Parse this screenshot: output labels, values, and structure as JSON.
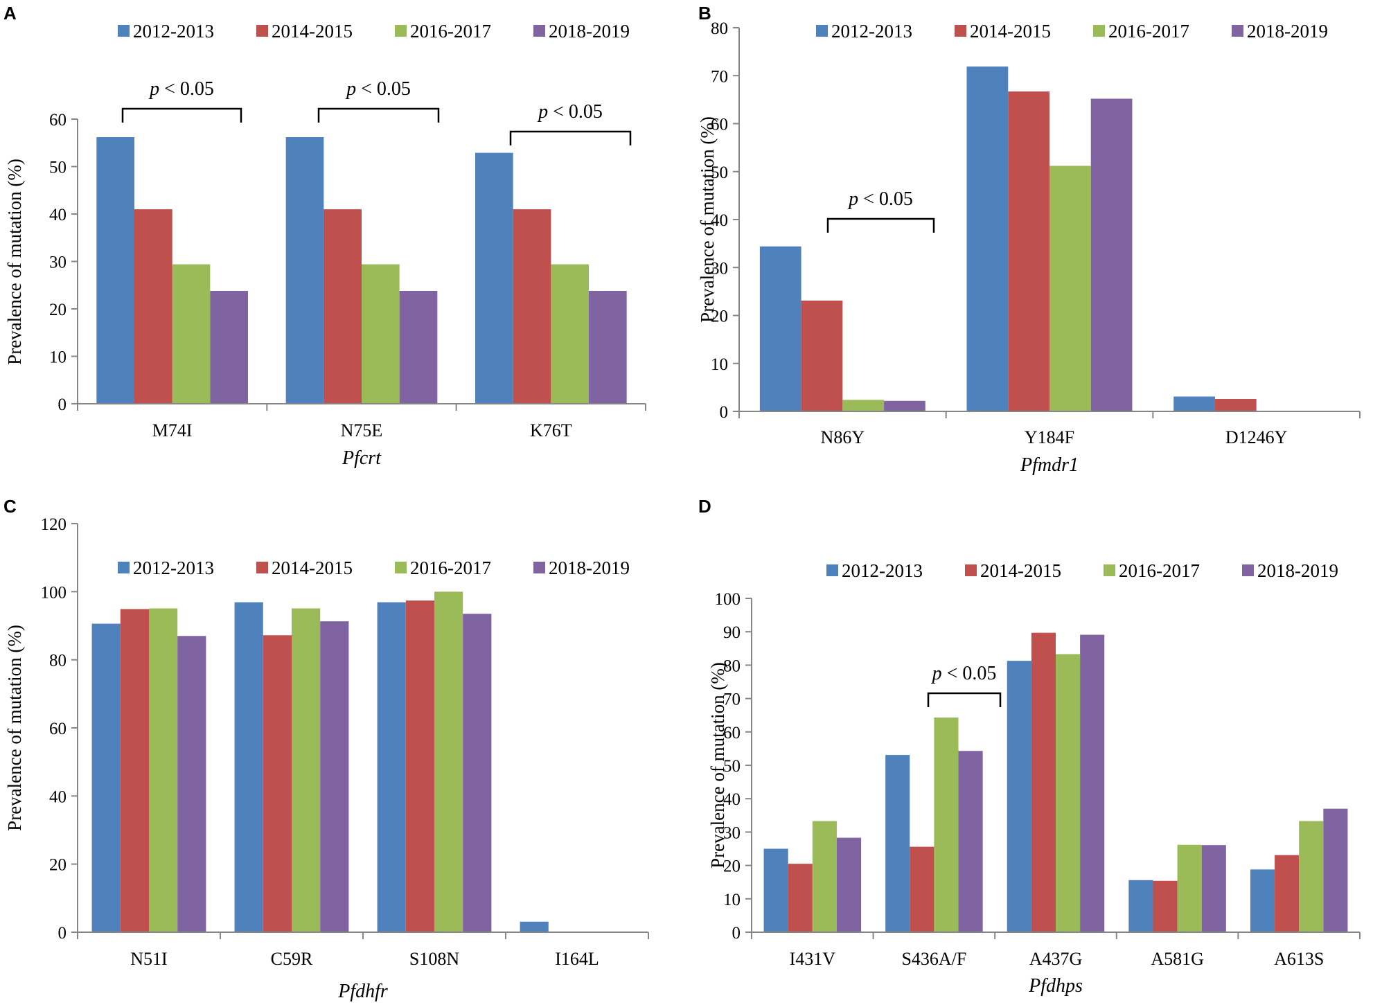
{
  "legend_series": [
    "2012-2013",
    "2014-2015",
    "2016-2017",
    "2018-2019"
  ],
  "colors": [
    "#4F81BD",
    "#C0504D",
    "#9BBB59",
    "#8064A2"
  ],
  "chart_data": [
    {
      "panel": "A",
      "type": "bar",
      "categories": [
        "M74I",
        "N75E",
        "K76T"
      ],
      "series": [
        {
          "name": "2012-2013",
          "values": [
            56.2,
            56.2,
            52.9
          ]
        },
        {
          "name": "2014-2015",
          "values": [
            41.0,
            41.0,
            41.0
          ]
        },
        {
          "name": "2016-2017",
          "values": [
            29.4,
            29.4,
            29.4
          ]
        },
        {
          "name": "2018-2019",
          "values": [
            23.8,
            23.8,
            23.8
          ]
        }
      ],
      "xlabel": "Pfcrt",
      "ylabel": "Prevalence of mutation (%)",
      "ylim": [
        0,
        60
      ],
      "yticks": [
        0,
        10,
        20,
        30,
        40,
        50,
        60
      ],
      "annotations": [
        {
          "text_p": "p",
          "text_rest": " < 0.05",
          "category": 0
        },
        {
          "text_p": "p",
          "text_rest": " < 0.05",
          "category": 1
        },
        {
          "text_p": "p",
          "text_rest": " < 0.05",
          "category": 2
        }
      ]
    },
    {
      "panel": "B",
      "type": "bar",
      "categories": [
        "N86Y",
        "Y184F",
        "D1246Y"
      ],
      "series": [
        {
          "name": "2012-2013",
          "values": [
            34.4,
            71.9,
            3.1
          ]
        },
        {
          "name": "2014-2015",
          "values": [
            23.1,
            66.7,
            2.6
          ]
        },
        {
          "name": "2016-2017",
          "values": [
            2.4,
            51.2,
            0
          ]
        },
        {
          "name": "2018-2019",
          "values": [
            2.2,
            65.2,
            0
          ]
        }
      ],
      "xlabel": "Pfmdr1",
      "ylabel": "Prevalence of mutation (%)",
      "ylim": [
        0,
        80
      ],
      "yticks": [
        0,
        10,
        20,
        30,
        40,
        50,
        60,
        70,
        80
      ],
      "annotations": [
        {
          "text_p": "p",
          "text_rest": " < 0.05",
          "category": 0
        }
      ]
    },
    {
      "panel": "C",
      "type": "bar",
      "categories": [
        "N51I",
        "C59R",
        "S108N",
        "I164L"
      ],
      "series": [
        {
          "name": "2012-2013",
          "values": [
            90.6,
            96.9,
            96.9,
            3.1
          ]
        },
        {
          "name": "2014-2015",
          "values": [
            94.9,
            87.2,
            97.4,
            0
          ]
        },
        {
          "name": "2016-2017",
          "values": [
            95.1,
            95.1,
            100,
            0
          ]
        },
        {
          "name": "2018-2019",
          "values": [
            87.0,
            91.3,
            93.5,
            0
          ]
        }
      ],
      "xlabel": "Pfdhfr",
      "ylabel": "Prevalence of mutation (%)",
      "ylim": [
        0,
        120
      ],
      "yticks": [
        0,
        20,
        40,
        60,
        80,
        100,
        120
      ],
      "annotations": []
    },
    {
      "panel": "D",
      "type": "bar",
      "categories": [
        "I431V",
        "S436A/F",
        "A437G",
        "A581G",
        "A613S"
      ],
      "series": [
        {
          "name": "2012-2013",
          "values": [
            25.0,
            53.1,
            81.3,
            15.6,
            18.8
          ]
        },
        {
          "name": "2014-2015",
          "values": [
            20.5,
            25.6,
            89.7,
            15.4,
            23.1
          ]
        },
        {
          "name": "2016-2017",
          "values": [
            33.3,
            64.3,
            83.3,
            26.2,
            33.3
          ]
        },
        {
          "name": "2018-2019",
          "values": [
            28.3,
            54.3,
            89.1,
            26.1,
            37.0
          ]
        }
      ],
      "xlabel": "Pfdhps",
      "ylabel": "Prevalence of mutation (%)",
      "ylim": [
        0,
        100
      ],
      "yticks": [
        0,
        10,
        20,
        30,
        40,
        50,
        60,
        70,
        80,
        90,
        100
      ],
      "annotations": [
        {
          "text_p": "p",
          "text_rest": " < 0.05",
          "category": 1
        }
      ]
    }
  ]
}
